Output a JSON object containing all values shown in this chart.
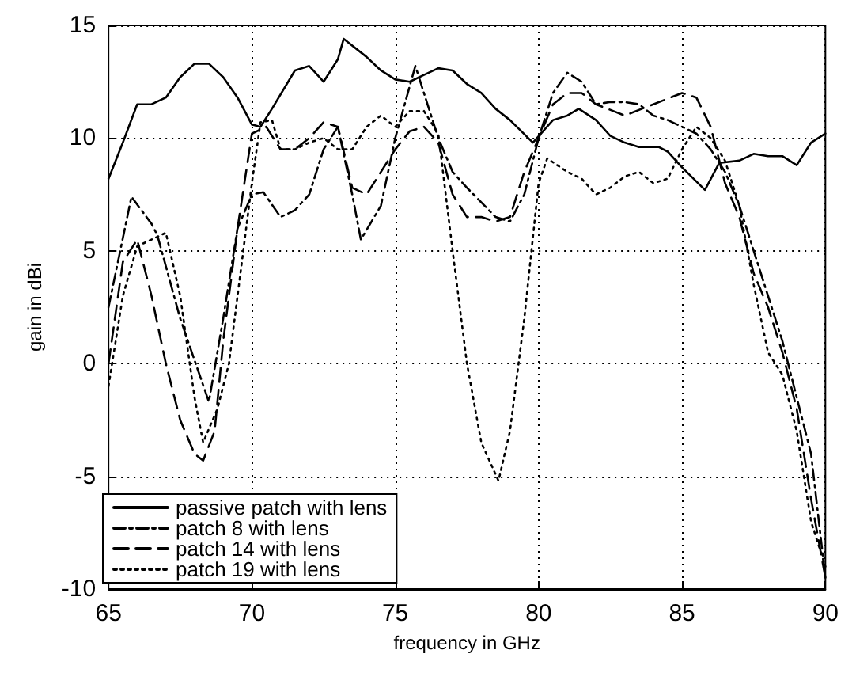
{
  "chart_data": {
    "type": "line",
    "xlabel": "frequency in GHz",
    "ylabel": "gain in dBi",
    "xlim": [
      65,
      90
    ],
    "ylim": [
      -10,
      15
    ],
    "xticks": [
      65,
      70,
      75,
      80,
      85,
      90
    ],
    "yticks": [
      -10,
      -5,
      0,
      5,
      10,
      15
    ],
    "grid": true,
    "legend": "bottom left",
    "marker": "none",
    "series": [
      {
        "name": "passive patch with lens",
        "color": "#000000",
        "line_style": "solid",
        "x": [
          65,
          65.5,
          66,
          66.5,
          67,
          67.5,
          68,
          68.5,
          69,
          69.5,
          70,
          70.3,
          70.7,
          71.5,
          72,
          72.5,
          73,
          73.2,
          74,
          74.5,
          75,
          75.5,
          76,
          76.5,
          77,
          77.5,
          78,
          78.5,
          79,
          79.8,
          80.5,
          81,
          81.4,
          82,
          82.5,
          83,
          83.5,
          84.2,
          84.5,
          85,
          85.8,
          86.3,
          87,
          87.5,
          88,
          88.5,
          89,
          89.5,
          90
        ],
        "values": [
          8.2,
          9.8,
          11.5,
          11.5,
          11.8,
          12.7,
          13.3,
          13.3,
          12.7,
          11.8,
          10.6,
          10.5,
          11.3,
          13,
          13.2,
          12.5,
          13.5,
          14.4,
          13.6,
          13,
          12.6,
          12.5,
          12.8,
          13.1,
          13,
          12.4,
          12,
          11.3,
          10.8,
          9.8,
          10.8,
          11,
          11.3,
          10.8,
          10.1,
          9.8,
          9.6,
          9.6,
          9.4,
          8.7,
          7.7,
          8.9,
          9,
          9.3,
          9.2,
          9.2,
          8.8,
          9.8,
          10.2
        ]
      },
      {
        "name": "patch 8 with lens",
        "color": "#000000",
        "line_style": "dashdot",
        "x": [
          65,
          65.8,
          66.5,
          66.7,
          67.5,
          68.5,
          69,
          69.5,
          70,
          70.4,
          71,
          71.5,
          72,
          72.5,
          73,
          73.5,
          73.8,
          74.5,
          75,
          75.7,
          76.5,
          77,
          77.5,
          78.5,
          79,
          79.5,
          80,
          80.5,
          81,
          81.5,
          82,
          82.5,
          83,
          83.5,
          84,
          84.5,
          85,
          85.5,
          86,
          86.5,
          87,
          87.5,
          88,
          88.5,
          89,
          89.5,
          90
        ],
        "values": [
          2.5,
          7.4,
          6.2,
          5.7,
          2,
          -1.7,
          2,
          6,
          7.5,
          7.6,
          6.5,
          6.8,
          7.5,
          9.5,
          10.5,
          7.5,
          5.5,
          7,
          10,
          13.2,
          10,
          8.5,
          7.8,
          6.5,
          6.3,
          7.5,
          10,
          12,
          12.9,
          12.5,
          11.5,
          11.6,
          11.6,
          11.5,
          11,
          10.8,
          10.5,
          10.2,
          9.5,
          8.5,
          7,
          5,
          3,
          1,
          -1.5,
          -4,
          -9.5
        ]
      },
      {
        "name": "patch 14 with lens",
        "color": "#000000",
        "line_style": "dashed",
        "x": [
          65,
          65.5,
          66,
          66.5,
          67,
          67.5,
          68,
          68.3,
          68.7,
          69,
          69.5,
          70,
          70.5,
          71,
          71.5,
          72,
          72.5,
          73,
          73.5,
          74,
          74.5,
          75,
          75.5,
          76,
          76.5,
          77,
          77.5,
          78,
          78.5,
          79,
          79.5,
          80,
          80.5,
          81,
          81.5,
          82,
          83,
          84,
          85,
          85.5,
          86,
          86.5,
          87,
          87.5,
          88,
          88.5,
          89,
          89.5,
          90
        ],
        "values": [
          0,
          4.5,
          5.5,
          3,
          0,
          -2.5,
          -4,
          -4.3,
          -3,
          1,
          6,
          10.2,
          10.5,
          9.5,
          9.5,
          10,
          10.7,
          10.5,
          7.8,
          7.5,
          8.5,
          9.5,
          10.3,
          10.5,
          9.8,
          7.5,
          6.5,
          6.5,
          6.3,
          6.5,
          8.5,
          10,
          11.5,
          12,
          12,
          11.5,
          11,
          11.5,
          12,
          11.8,
          10.5,
          8,
          6.5,
          4,
          2.5,
          0.5,
          -2,
          -6,
          -9.5
        ]
      },
      {
        "name": "patch 19 with lens",
        "color": "#000000",
        "line_style": "dotted",
        "x": [
          65,
          65.5,
          66,
          66.5,
          67,
          67.5,
          68,
          68.3,
          68.8,
          69.2,
          69.5,
          70,
          70.3,
          70.7,
          71,
          71.5,
          72,
          72.5,
          73,
          73.5,
          74,
          74.5,
          75,
          75.5,
          76,
          76.5,
          77,
          77.5,
          78,
          78.6,
          79,
          79.5,
          80,
          80.3,
          81,
          81.5,
          82,
          82.5,
          83,
          83.5,
          84,
          84.5,
          85,
          85.5,
          86,
          86.5,
          87,
          87.5,
          88,
          88.5,
          89,
          89.5,
          90
        ],
        "values": [
          -1,
          3,
          5.2,
          5.5,
          5.8,
          3,
          -1.5,
          -3.5,
          -2,
          0,
          3,
          8,
          10.7,
          10.8,
          9.5,
          9.5,
          9.8,
          10,
          9.5,
          9.5,
          10.5,
          11,
          10.5,
          11.2,
          11.2,
          10.2,
          5,
          0,
          -3.5,
          -5.2,
          -3,
          2,
          8,
          9.1,
          8.5,
          8.2,
          7.5,
          7.8,
          8.3,
          8.5,
          8,
          8.2,
          9.5,
          10.5,
          10,
          9,
          7,
          3.5,
          0.5,
          -0.5,
          -3,
          -7,
          -9
        ]
      }
    ]
  }
}
